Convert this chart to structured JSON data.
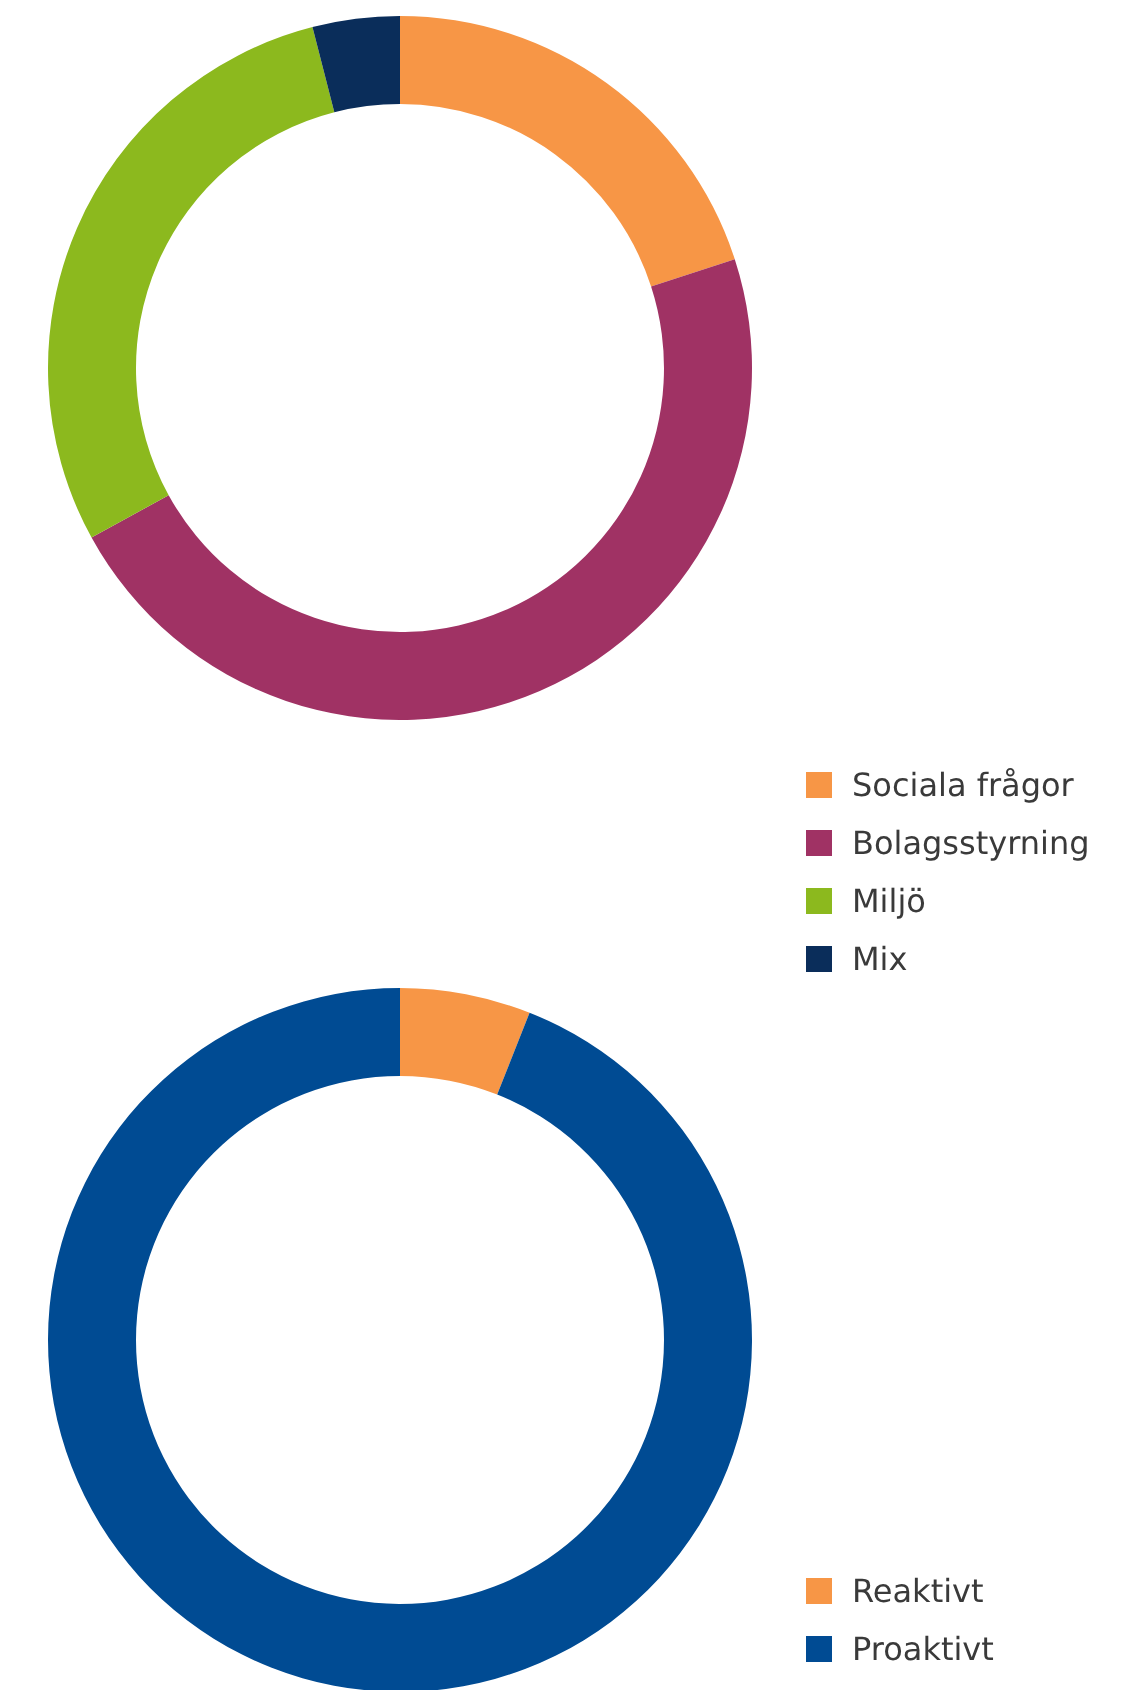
{
  "chart_data": [
    {
      "type": "donut",
      "categories": [
        "Sociala frågor",
        "Bolagsstyrning",
        "Miljö",
        "Mix"
      ],
      "values": [
        20,
        47,
        29,
        4
      ],
      "colors": [
        "#f79646",
        "#a03264",
        "#8cb91e",
        "#0a2d5a"
      ],
      "legend": "bottom right"
    },
    {
      "type": "donut",
      "categories": [
        "Reaktivt",
        "Proaktivt"
      ],
      "values": [
        6,
        94
      ],
      "colors": [
        "#f79646",
        "#004b93"
      ],
      "legend": "bottom right"
    }
  ]
}
